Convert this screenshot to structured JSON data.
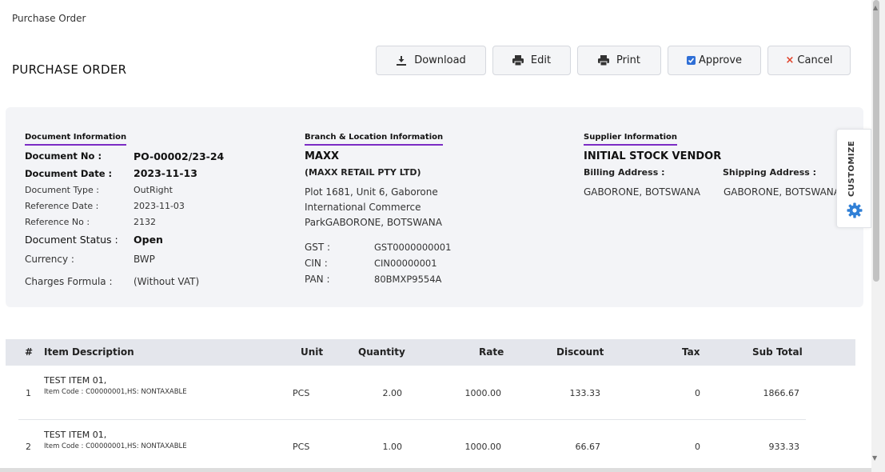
{
  "breadcrumb": "Purchase Order",
  "page_title": "PURCHASE ORDER",
  "toolbar": {
    "download": "Download",
    "edit": "Edit",
    "print": "Print",
    "approve": "Approve",
    "cancel": "Cancel"
  },
  "document_info": {
    "title": "Document Information",
    "doc_no_label": "Document No :",
    "doc_no": "PO-00002/23-24",
    "doc_date_label": "Document Date :",
    "doc_date": "2023-11-13",
    "doc_type_label": "Document Type :",
    "doc_type": "OutRight",
    "ref_date_label": "Reference Date :",
    "ref_date": "2023-11-03",
    "ref_no_label": "Reference No :",
    "ref_no": "2132",
    "status_label": "Document Status :",
    "status": "Open",
    "currency_label": "Currency :",
    "currency": "BWP",
    "charges_label": "Charges Formula :",
    "charges": "(Without VAT)"
  },
  "branch_info": {
    "title": "Branch & Location Information",
    "name": "MAXX",
    "legal_name": "(MAXX RETAIL PTY LTD)",
    "address_line1": "Plot 1681, Unit 6, Gaborone",
    "address_line2": "International Commerce",
    "address_line3": "ParkGABORONE, BOTSWANA",
    "gst_label": "GST :",
    "gst": "GST0000000001",
    "cin_label": "CIN :",
    "cin": "CIN00000001",
    "pan_label": "PAN :",
    "pan": "80BMXP9554A"
  },
  "supplier_info": {
    "title": "Supplier Information",
    "name": "INITIAL STOCK VENDOR",
    "billing_label": "Billing Address :",
    "billing": "GABORONE, BOTSWANA",
    "shipping_label": "Shipping Address :",
    "shipping": "GABORONE, BOTSWANA"
  },
  "customize_label": "CUSTOMIZE",
  "table": {
    "headers": [
      "#",
      "Item Description",
      "Unit",
      "Quantity",
      "Rate",
      "Discount",
      "Tax",
      "Sub Total"
    ],
    "rows": [
      {
        "no": "1",
        "name": "TEST ITEM 01,",
        "code": "Item Code : C00000001,HS: NONTAXABLE",
        "unit": "PCS",
        "qty": "2.00",
        "rate": "1000.00",
        "discount": "133.33",
        "tax": "0",
        "subtotal": "1866.67"
      },
      {
        "no": "2",
        "name": "TEST ITEM 01,",
        "code": "Item Code : C00000001,HS: NONTAXABLE",
        "unit": "PCS",
        "qty": "1.00",
        "rate": "1000.00",
        "discount": "66.67",
        "tax": "0",
        "subtotal": "933.33"
      }
    ]
  },
  "icons": {
    "download": "download-icon",
    "edit": "printer-icon",
    "print": "printer-icon",
    "approve": "checkbox-checked-icon",
    "cancel": "close-icon",
    "customize": "gear-icon"
  },
  "colors": {
    "accent_underline": "#7b2cc4",
    "checkbox": "#2f6fd6",
    "cancel": "#e0432b",
    "gear": "#2f7fd6"
  }
}
